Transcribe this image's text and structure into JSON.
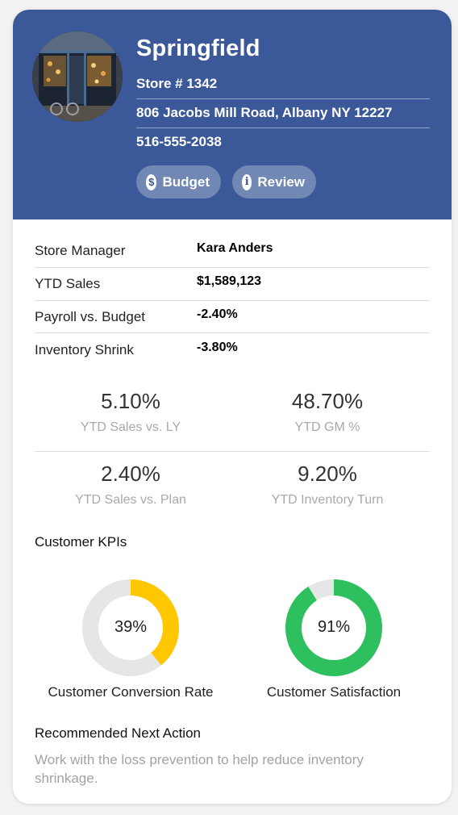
{
  "store": {
    "name": "Springfield",
    "number": "Store # 1342",
    "address": "806 Jacobs Mill Road, Albany NY 12227",
    "phone": "516-555-2038",
    "buttons": {
      "budget": "Budget",
      "review": "Review"
    },
    "icons": {
      "budget": "dollar-icon",
      "review": "info-icon"
    }
  },
  "details": [
    {
      "label": "Store Manager",
      "value": "Kara Anders"
    },
    {
      "label": "YTD Sales",
      "value": "$1,589,123"
    },
    {
      "label": "Payroll vs. Budget",
      "value": "-2.40%"
    },
    {
      "label": "Inventory Shrink",
      "value": "-3.80%"
    }
  ],
  "metrics": [
    {
      "value": "5.10%",
      "caption": "YTD Sales vs. LY"
    },
    {
      "value": "48.70%",
      "caption": "YTD GM %"
    },
    {
      "value": "2.40%",
      "caption": "YTD Sales vs. Plan"
    },
    {
      "value": "9.20%",
      "caption": "YTD Inventory Turn"
    }
  ],
  "kpis": {
    "title": "Customer KPIs",
    "items": [
      {
        "label": "Customer Conversion Rate",
        "percent_text": "39%",
        "fraction": 0.39,
        "color": "#ffc700"
      },
      {
        "label": "Customer Satisfaction",
        "percent_text": "91%",
        "fraction": 0.91,
        "color": "#2ec05e"
      }
    ],
    "track_color": "#e6e6e6"
  },
  "recommendation": {
    "title": "Recommended Next Action",
    "text": "Work with the loss prevention to help reduce inventory shrinkage."
  },
  "colors": {
    "header": "#3b5998"
  }
}
